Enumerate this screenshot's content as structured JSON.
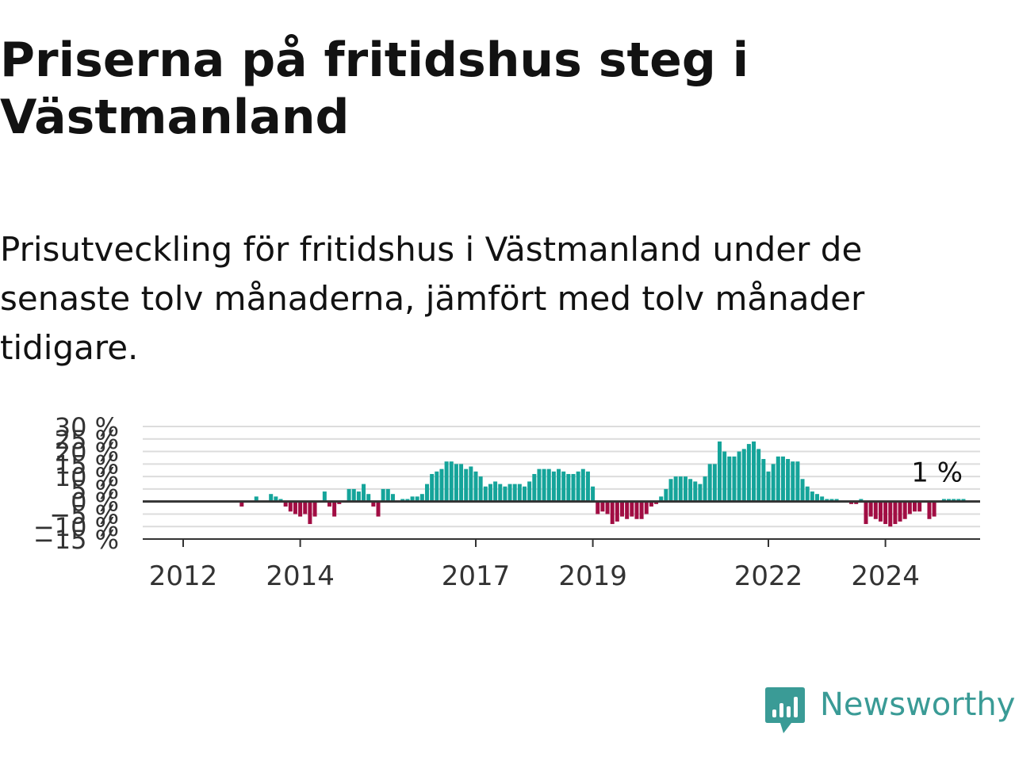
{
  "title": "Priserna på fritidshus steg i Västmanland",
  "subtitle": "Prisutveckling för fritidshus i Västmanland under de senaste tolv månaderna, jämfört med tolv månader tidigare.",
  "brand": {
    "name": "Newsworthy",
    "color": "#3a9b96",
    "icon": "newsworthy-logo-icon"
  },
  "colors": {
    "positive": "#15a49a",
    "negative": "#a10d43",
    "grid": "#dcdcdc",
    "axis": "#333333",
    "text": "#333333"
  },
  "chart_data": {
    "type": "bar",
    "ylim": [
      -15,
      30
    ],
    "y_ticks": [
      30,
      25,
      20,
      15,
      10,
      5,
      0,
      -5,
      -10,
      -15
    ],
    "y_tick_labels": [
      "30 %",
      "25 %",
      "20 %",
      "15 %",
      "10 %",
      "5 %",
      "0 %",
      "−5 %",
      "−10 %",
      "−15 %"
    ],
    "x_ticks": [
      "2012",
      "2014",
      "2017",
      "2019",
      "2022",
      "2024"
    ],
    "grid": true,
    "last_label": "1 %",
    "period": {
      "start": "2011-01",
      "end": "2025-12",
      "frequency": "monthly"
    },
    "values": [
      null,
      null,
      null,
      null,
      null,
      null,
      null,
      null,
      null,
      null,
      null,
      null,
      null,
      null,
      null,
      null,
      null,
      null,
      null,
      null,
      null,
      null,
      null,
      null,
      -2,
      0,
      0,
      2,
      0,
      0,
      3,
      2,
      1,
      -2,
      -4,
      -5,
      -6,
      -5,
      -9,
      -6,
      0,
      4,
      -2,
      -6,
      -1,
      0,
      5,
      5,
      4,
      7,
      3,
      -2,
      -6,
      5,
      5,
      3,
      0,
      1,
      1,
      2,
      2,
      3,
      7,
      11,
      12,
      13,
      16,
      16,
      15,
      15,
      13,
      14,
      12,
      10,
      6,
      7,
      8,
      7,
      6,
      7,
      7,
      7,
      6,
      8,
      11,
      13,
      13,
      13,
      12,
      13,
      12,
      11,
      11,
      12,
      13,
      12,
      6,
      -5,
      -4,
      -5,
      -9,
      -8,
      -6,
      -7,
      -6,
      -7,
      -7,
      -5,
      -2,
      -1,
      2,
      5,
      9,
      10,
      10,
      10,
      9,
      8,
      7,
      10,
      15,
      15,
      24,
      20,
      18,
      18,
      20,
      21,
      23,
      24,
      21,
      17,
      12,
      15,
      18,
      18,
      17,
      16,
      16,
      9,
      6,
      4,
      3,
      2,
      1,
      1,
      1,
      0,
      0,
      -1,
      -1,
      1,
      -9,
      -6,
      -7,
      -8,
      -9,
      -10,
      -9,
      -8,
      -7,
      -5,
      -4,
      -4,
      0,
      -7,
      -6,
      0,
      1,
      1,
      1,
      1,
      1,
      null,
      null,
      null,
      null,
      null,
      null,
      null
    ]
  }
}
